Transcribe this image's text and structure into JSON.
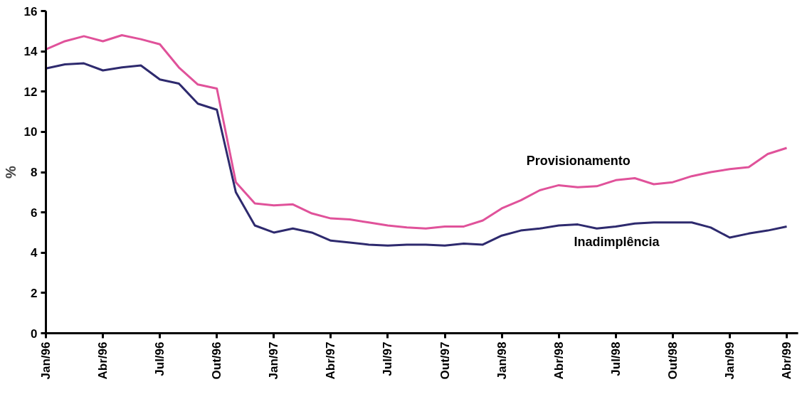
{
  "chart_data": {
    "type": "line",
    "ylabel": "%",
    "categories": [
      "Jan/96",
      null,
      null,
      "Abr/96",
      null,
      null,
      "Jul/96",
      null,
      null,
      "Out/96",
      null,
      null,
      "Jan/97",
      null,
      null,
      "Abr/97",
      null,
      null,
      "Jul/97",
      null,
      null,
      "Out/97",
      null,
      null,
      "Jan/98",
      null,
      null,
      "Abr/98",
      null,
      null,
      "Jul/98",
      null,
      null,
      "Out/98",
      null,
      null,
      "Jan/99",
      null,
      null,
      "Abr/99"
    ],
    "series": [
      {
        "name": "Provisionamento",
        "color": "#e0529a",
        "values": [
          14.1,
          14.5,
          14.75,
          14.5,
          14.8,
          14.6,
          14.35,
          13.2,
          12.35,
          12.15,
          7.5,
          6.45,
          6.35,
          6.4,
          5.95,
          5.7,
          5.65,
          5.5,
          5.35,
          5.25,
          5.2,
          5.3,
          5.3,
          5.6,
          6.2,
          6.6,
          7.1,
          7.35,
          7.25,
          7.3,
          7.6,
          7.7,
          7.4,
          7.5,
          7.8,
          8.0,
          8.15,
          8.25,
          8.9,
          9.2
        ]
      },
      {
        "name": "Inadimplência",
        "color": "#2e2a6e",
        "values": [
          13.15,
          13.35,
          13.4,
          13.05,
          13.2,
          13.3,
          12.6,
          12.4,
          11.4,
          11.1,
          7.0,
          5.35,
          5.0,
          5.2,
          5.0,
          4.6,
          4.5,
          4.4,
          4.35,
          4.4,
          4.4,
          4.35,
          4.45,
          4.4,
          4.85,
          5.1,
          5.2,
          5.35,
          5.4,
          5.2,
          5.3,
          5.45,
          5.5,
          5.5,
          5.5,
          5.25,
          4.75,
          4.95,
          5.1,
          5.3
        ]
      }
    ],
    "ylim": [
      0,
      16
    ],
    "yticks": [
      0,
      2,
      4,
      6,
      8,
      10,
      12,
      14,
      16
    ],
    "grid": false,
    "legend": false,
    "marker": "none",
    "line_style": "solid"
  }
}
